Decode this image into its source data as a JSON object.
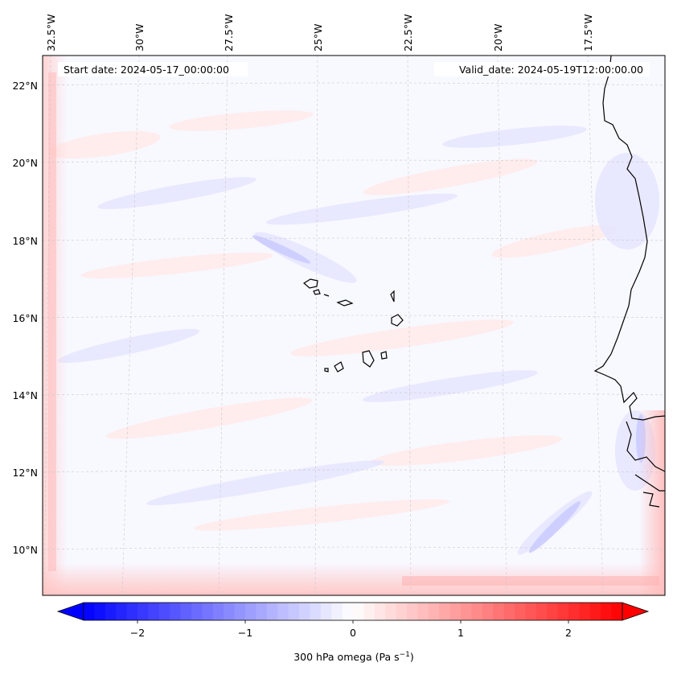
{
  "map": {
    "start_date": "Start date: 2024-05-17_00:00:00",
    "valid_date": "Valid_date: 2024-05-19T12:00:00.00",
    "lon_labels": [
      "32.5°W",
      "30°W",
      "27.5°W",
      "25°W",
      "22.5°W",
      "20°W",
      "17.5°W"
    ],
    "lat_labels": [
      "22°N",
      "20°N",
      "18°N",
      "16°N",
      "14°N",
      "12°N",
      "10°N"
    ],
    "field": "300 hPa omega",
    "region": "Cabo Verde and West African coast (Senegal / Gambia / Guinea-Bissau)",
    "colors": {
      "negative": "#0000ff",
      "zero": "#ffffff",
      "positive": "#ff0000",
      "coastline": "#000000"
    }
  },
  "colorbar": {
    "label_text": "300 hPa omega (Pa s",
    "label_sup": "−1",
    "label_close": ")",
    "ticks": [
      "−2",
      "−1",
      "0",
      "1",
      "2"
    ],
    "range": [
      -2.75,
      2.75
    ],
    "extend": "both"
  }
}
